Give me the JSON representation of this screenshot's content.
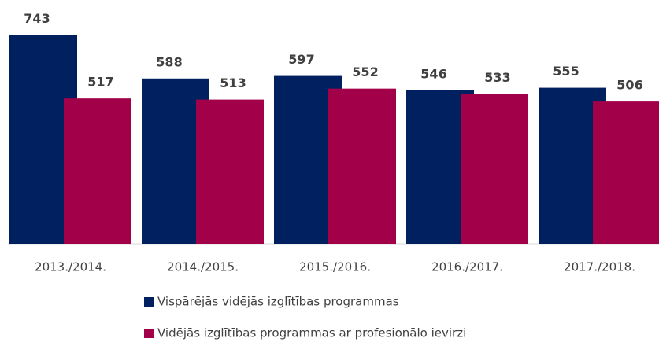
{
  "chart_data": {
    "type": "bar",
    "categories": [
      "2013./2014.",
      "2014./2015.",
      "2015./2016.",
      "2016./2017.",
      "2017./2018."
    ],
    "series": [
      {
        "name": "Vispārējās vidējās izglītības programmas",
        "color": "#002060",
        "values": [
          743,
          588,
          597,
          546,
          555
        ]
      },
      {
        "name": "Vidējās izglītības programmas ar profesionālo ievirzi",
        "color": "#a3004a",
        "values": [
          517,
          513,
          552,
          533,
          506
        ]
      }
    ],
    "ylim": [
      0,
      800
    ]
  }
}
